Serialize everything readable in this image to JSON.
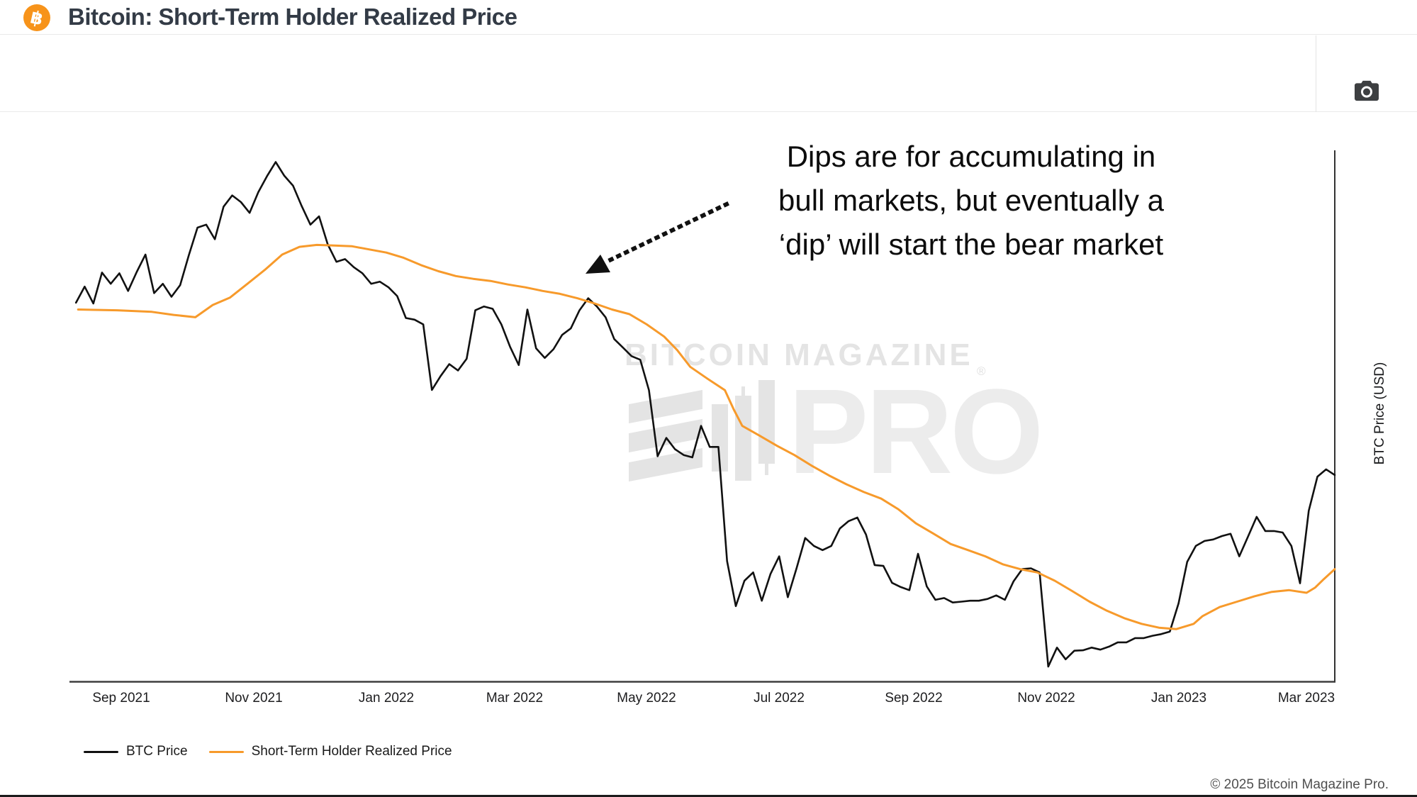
{
  "header": {
    "title": "Bitcoin: Short-Term Holder Realized Price",
    "icon_symbol": "฿"
  },
  "annotation": {
    "line1": "Dips are for accumulating in",
    "line2": "bull markets, but eventually a",
    "line3": "‘dip’ will start the bear market"
  },
  "watermark": {
    "title": "BITCOIN MAGAZINE",
    "reg": "®",
    "pro": "PRO"
  },
  "legend": {
    "items": [
      {
        "label": "BTC Price",
        "color": "#111111"
      },
      {
        "label": "Short-Term Holder Realized Price",
        "color": "#f79a2b"
      }
    ]
  },
  "footer": {
    "copyright": "© 2025 Bitcoin Magazine Pro."
  },
  "chart_data": {
    "type": "line",
    "title": "Bitcoin: Short-Term Holder Realized Price",
    "xlabel": "",
    "ylabel": "BTC Price (USD)",
    "y_scale": "log",
    "y_range_usd": [
      15100,
      71300
    ],
    "x_range": [
      "2021-08-08",
      "2023-03-14"
    ],
    "grid": false,
    "legend_position": "bottom-left",
    "x_ticks": [
      {
        "label": "Sep 2021",
        "date": "2021-09-01"
      },
      {
        "label": "Nov 2021",
        "date": "2021-11-01"
      },
      {
        "label": "Jan 2022",
        "date": "2022-01-01"
      },
      {
        "label": "Mar 2022",
        "date": "2022-03-01"
      },
      {
        "label": "May 2022",
        "date": "2022-05-01"
      },
      {
        "label": "Jul 2022",
        "date": "2022-07-01"
      },
      {
        "label": "Sep 2022",
        "date": "2022-09-01"
      },
      {
        "label": "Nov 2022",
        "date": "2022-11-01"
      },
      {
        "label": "Jan 2023",
        "date": "2023-01-01"
      },
      {
        "label": "Mar 2023",
        "date": "2023-03-01"
      }
    ],
    "series": [
      {
        "name": "BTC Price",
        "color": "#111111",
        "width": 2.6,
        "start": "2021-08-11",
        "step_days": 4,
        "values": [
          45700,
          47900,
          45600,
          49900,
          48300,
          49800,
          47300,
          50000,
          52600,
          47000,
          48300,
          46500,
          48100,
          52500,
          56900,
          57400,
          55000,
          60500,
          62500,
          61300,
          59400,
          63100,
          66100,
          68900,
          66200,
          64300,
          60600,
          57400,
          58800,
          54200,
          51500,
          51900,
          50700,
          49800,
          48300,
          48600,
          47800,
          46600,
          43700,
          43500,
          42900,
          35430,
          36900,
          38200,
          37500,
          38800,
          44700,
          45200,
          44900,
          42900,
          40200,
          38100,
          44800,
          40000,
          38900,
          39900,
          41600,
          42400,
          44700,
          46300,
          45200,
          43800,
          41100,
          40100,
          39100,
          38700,
          35400,
          29200,
          30800,
          29800,
          29300,
          29100,
          31900,
          30000,
          30000,
          21500,
          18850,
          20300,
          20800,
          19150,
          20700,
          21800,
          19350,
          21050,
          23000,
          22470,
          22200,
          22470,
          23650,
          24160,
          24410,
          23230,
          21250,
          21200,
          20180,
          19930,
          19750,
          21960,
          19970,
          19200,
          19300,
          19050,
          19100,
          19150,
          19150,
          19250,
          19450,
          19200,
          20270,
          21000,
          21050,
          20800,
          15800,
          16700,
          16140,
          16550,
          16570,
          16700,
          16600,
          16750,
          16960,
          16960,
          17170,
          17170,
          17290,
          17370,
          17500,
          19000,
          21450,
          22470,
          22800,
          22900,
          23130,
          23280,
          21800,
          23080,
          24460,
          23470,
          23470,
          23370,
          22470,
          20150,
          24900,
          27500,
          28100,
          27640
        ]
      },
      {
        "name": "Short-Term Holder Realized Price",
        "color": "#f79a2b",
        "width": 3,
        "points": [
          [
            "2021-08-12",
            44800
          ],
          [
            "2021-08-30",
            44700
          ],
          [
            "2021-09-15",
            44500
          ],
          [
            "2021-09-25",
            44100
          ],
          [
            "2021-10-05",
            43800
          ],
          [
            "2021-10-13",
            45400
          ],
          [
            "2021-10-21",
            46400
          ],
          [
            "2021-10-29",
            48300
          ],
          [
            "2021-11-06",
            50300
          ],
          [
            "2021-11-14",
            52600
          ],
          [
            "2021-11-22",
            53800
          ],
          [
            "2021-11-30",
            54100
          ],
          [
            "2021-12-08",
            54000
          ],
          [
            "2021-12-16",
            53900
          ],
          [
            "2021-12-24",
            53400
          ],
          [
            "2022-01-01",
            52900
          ],
          [
            "2022-01-09",
            52100
          ],
          [
            "2022-01-17",
            51000
          ],
          [
            "2022-01-25",
            50100
          ],
          [
            "2022-02-02",
            49400
          ],
          [
            "2022-02-10",
            49000
          ],
          [
            "2022-02-18",
            48700
          ],
          [
            "2022-02-26",
            48200
          ],
          [
            "2022-03-06",
            47800
          ],
          [
            "2022-03-14",
            47300
          ],
          [
            "2022-03-22",
            46900
          ],
          [
            "2022-03-30",
            46300
          ],
          [
            "2022-04-07",
            45600
          ],
          [
            "2022-04-15",
            44800
          ],
          [
            "2022-04-23",
            44200
          ],
          [
            "2022-05-01",
            42900
          ],
          [
            "2022-05-09",
            41400
          ],
          [
            "2022-05-15",
            39800
          ],
          [
            "2022-05-21",
            37900
          ],
          [
            "2022-05-29",
            36600
          ],
          [
            "2022-06-06",
            35400
          ],
          [
            "2022-06-10",
            33500
          ],
          [
            "2022-06-14",
            31900
          ],
          [
            "2022-06-22",
            31000
          ],
          [
            "2022-06-30",
            30100
          ],
          [
            "2022-07-08",
            29300
          ],
          [
            "2022-07-16",
            28400
          ],
          [
            "2022-07-24",
            27600
          ],
          [
            "2022-08-01",
            26900
          ],
          [
            "2022-08-09",
            26300
          ],
          [
            "2022-08-17",
            25800
          ],
          [
            "2022-08-25",
            25000
          ],
          [
            "2022-09-02",
            24000
          ],
          [
            "2022-09-10",
            23300
          ],
          [
            "2022-09-18",
            22600
          ],
          [
            "2022-09-26",
            22200
          ],
          [
            "2022-10-04",
            21800
          ],
          [
            "2022-10-12",
            21300
          ],
          [
            "2022-10-20",
            21000
          ],
          [
            "2022-10-28",
            20800
          ],
          [
            "2022-11-05",
            20300
          ],
          [
            "2022-11-13",
            19700
          ],
          [
            "2022-11-21",
            19100
          ],
          [
            "2022-11-29",
            18600
          ],
          [
            "2022-12-07",
            18200
          ],
          [
            "2022-12-15",
            17900
          ],
          [
            "2022-12-23",
            17700
          ],
          [
            "2022-12-31",
            17630
          ],
          [
            "2023-01-08",
            17900
          ],
          [
            "2023-01-12",
            18300
          ],
          [
            "2023-01-20",
            18800
          ],
          [
            "2023-01-28",
            19100
          ],
          [
            "2023-02-05",
            19400
          ],
          [
            "2023-02-13",
            19650
          ],
          [
            "2023-02-21",
            19750
          ],
          [
            "2023-03-01",
            19600
          ],
          [
            "2023-03-05",
            19900
          ],
          [
            "2023-03-09",
            20400
          ],
          [
            "2023-03-14",
            21000
          ]
        ]
      }
    ]
  }
}
